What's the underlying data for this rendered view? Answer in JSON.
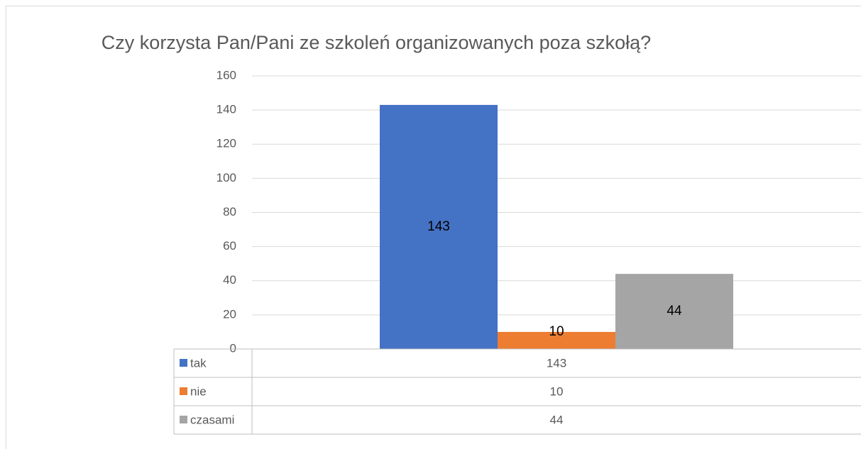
{
  "chart_data": {
    "type": "bar",
    "title": "Czy korzysta Pan/Pani ze szkoleń organizowanych poza szkołą?",
    "categories": [
      null
    ],
    "series": [
      {
        "name": "tak",
        "color": "#4472c4",
        "values": [
          143
        ]
      },
      {
        "name": "nie",
        "color": "#ed7d31",
        "values": [
          10
        ]
      },
      {
        "name": "czasami",
        "color": "#a5a5a5",
        "values": [
          44
        ]
      }
    ],
    "ylim": [
      0,
      160
    ],
    "yticks": [
      0,
      20,
      40,
      60,
      80,
      100,
      120,
      140,
      160
    ],
    "grid": true,
    "data_table": true
  }
}
